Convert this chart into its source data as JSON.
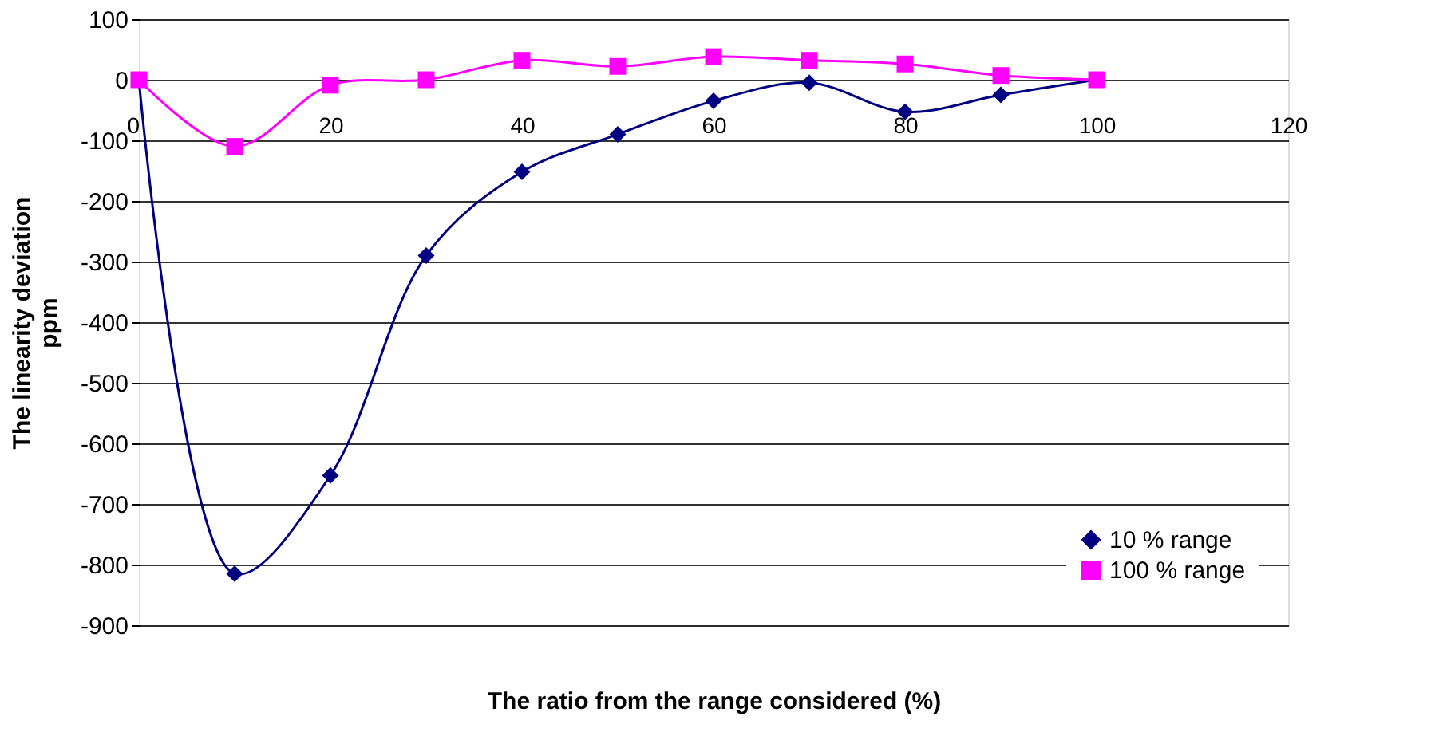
{
  "chart_data": {
    "type": "line",
    "xlabel": "The ratio from the range considered (%)",
    "ylabel": "The linearity deviation\nppm",
    "xlim": [
      0,
      120
    ],
    "xticks": [
      0,
      20,
      40,
      60,
      80,
      100,
      120
    ],
    "ylim": [
      -900,
      100
    ],
    "yticks": [
      -900,
      -800,
      -700,
      -600,
      -500,
      -400,
      -300,
      -200,
      -100,
      0,
      100
    ],
    "grid": "y",
    "legend": "bottom right",
    "series": [
      {
        "name": "10 % range",
        "color": "#000080",
        "marker": "diamond",
        "x": [
          0,
          10,
          20,
          30,
          40,
          50,
          60,
          70,
          80,
          90,
          100
        ],
        "values": [
          0,
          -815,
          -653,
          -290,
          -152,
          -90,
          -35,
          -5,
          -53,
          -25,
          0
        ]
      },
      {
        "name": "100 % range",
        "color": "#ff00ff",
        "marker": "square",
        "x": [
          0,
          10,
          20,
          30,
          40,
          50,
          60,
          70,
          80,
          90,
          100
        ],
        "values": [
          0,
          -110,
          -9,
          0,
          32,
          22,
          38,
          32,
          26,
          7,
          0
        ]
      }
    ]
  }
}
